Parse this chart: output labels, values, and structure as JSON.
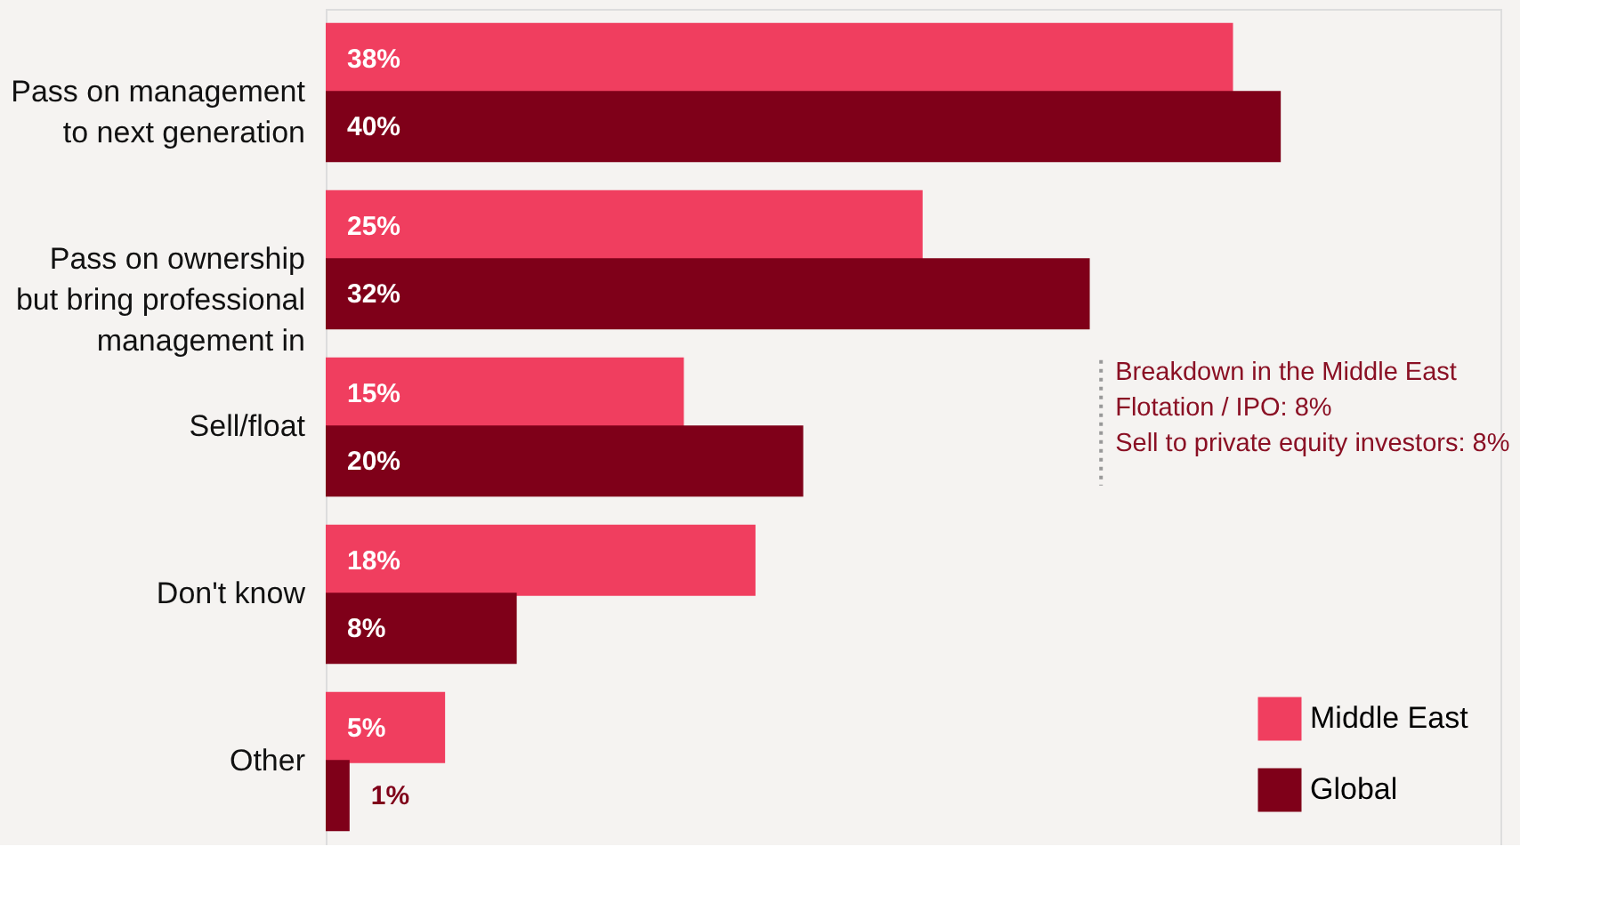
{
  "chart_data": {
    "type": "bar",
    "orientation": "horizontal",
    "categories": [
      "Pass on management\nto next generation",
      "Pass on ownership\nbut bring professional\nmanagement in",
      "Sell/float",
      "Don't know",
      "Other"
    ],
    "series": [
      {
        "name": "Middle East",
        "color": "#f03e5f",
        "values": [
          38,
          25,
          15,
          18,
          5
        ],
        "value_labels": [
          "38%",
          "25%",
          "15%",
          "18%",
          "5%"
        ]
      },
      {
        "name": "Global",
        "color": "#7f0019",
        "values": [
          40,
          32,
          20,
          8,
          1
        ],
        "value_labels": [
          "40%",
          "32%",
          "20%",
          "8%",
          "1%"
        ]
      }
    ],
    "annotations": [
      "Breakdown in the Middle East\nFlotation / IPO: 8%\nSell to private equity investors: 8%"
    ],
    "legend": "bottom right",
    "grid": false
  }
}
